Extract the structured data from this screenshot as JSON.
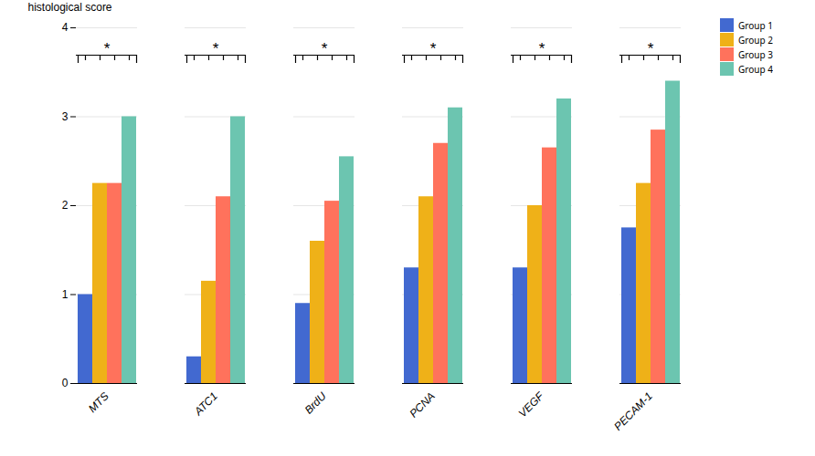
{
  "chart_data": {
    "type": "bar",
    "categories": [
      "MTS",
      "ATC1",
      "BrdU",
      "PCNA",
      "VEGF",
      "PECAM-1"
    ],
    "series": [
      {
        "name": "Group 1",
        "values": [
          1.0,
          0.3,
          0.9,
          1.3,
          1.3,
          1.75
        ]
      },
      {
        "name": "Group 2",
        "values": [
          2.25,
          1.15,
          1.6,
          2.1,
          2.0,
          2.25
        ]
      },
      {
        "name": "Group 3",
        "values": [
          2.25,
          2.1,
          2.05,
          2.7,
          2.65,
          2.85
        ]
      },
      {
        "name": "Group 4",
        "values": [
          3.0,
          3.0,
          2.55,
          3.1,
          3.2,
          3.4
        ]
      }
    ],
    "ylabel": "histological score",
    "ylim": [
      0,
      4
    ],
    "yticks": [
      0,
      1,
      2,
      3,
      4
    ],
    "grid": true,
    "legend": "right",
    "annotations": [
      {
        "category": "MTS",
        "y": 3.6,
        "text": "*"
      },
      {
        "category": "ATC1",
        "y": 3.6,
        "text": "*"
      },
      {
        "category": "BrdU",
        "y": 3.6,
        "text": "*"
      },
      {
        "category": "PCNA",
        "y": 3.6,
        "text": "*"
      },
      {
        "category": "VEGF",
        "y": 3.6,
        "text": "*"
      },
      {
        "category": "PECAM-1",
        "y": 3.6,
        "text": "*"
      }
    ]
  }
}
